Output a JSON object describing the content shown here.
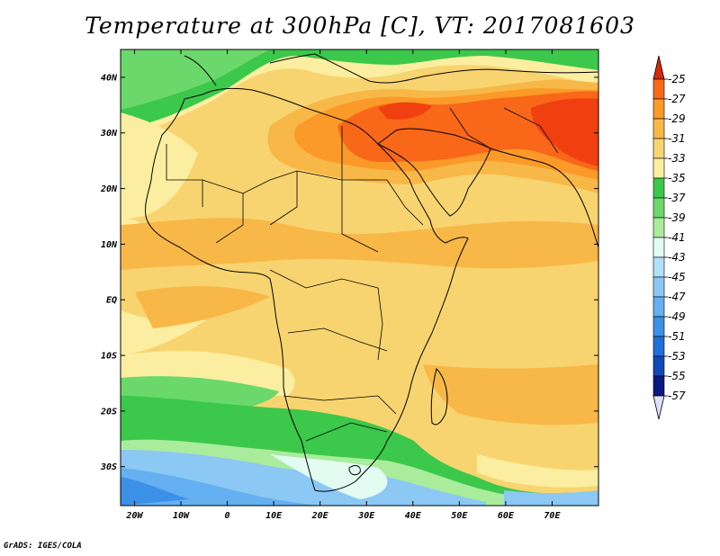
{
  "title": "Temperature at 300hPa [C], VT: 2017081603",
  "credit": "GrADS: IGES/COLA",
  "map": {
    "lon_range": [
      -23,
      80
    ],
    "lat_range": [
      -37,
      45
    ],
    "lat_ticks": [
      {
        "value": 40,
        "label": "40N"
      },
      {
        "value": 30,
        "label": "30N"
      },
      {
        "value": 20,
        "label": "20N"
      },
      {
        "value": 10,
        "label": "10N"
      },
      {
        "value": 0,
        "label": "EQ"
      },
      {
        "value": -10,
        "label": "10S"
      },
      {
        "value": -20,
        "label": "20S"
      },
      {
        "value": -30,
        "label": "30S"
      }
    ],
    "lon_ticks": [
      {
        "value": -20,
        "label": "20W"
      },
      {
        "value": -10,
        "label": "10W"
      },
      {
        "value": 0,
        "label": "0"
      },
      {
        "value": 10,
        "label": "10E"
      },
      {
        "value": 20,
        "label": "20E"
      },
      {
        "value": 30,
        "label": "30E"
      },
      {
        "value": 40,
        "label": "40E"
      },
      {
        "value": 50,
        "label": "50E"
      },
      {
        "value": 60,
        "label": "60E"
      },
      {
        "value": 70,
        "label": "70E"
      }
    ]
  },
  "colorbar": {
    "levels": [
      {
        "label": "-25",
        "color": "#f04010"
      },
      {
        "label": "-27",
        "color": "#f86818"
      },
      {
        "label": "-29",
        "color": "#fb9a28"
      },
      {
        "label": "-31",
        "color": "#f8b848"
      },
      {
        "label": "-33",
        "color": "#f8d470"
      },
      {
        "label": "-35",
        "color": "#fbeea0"
      },
      {
        "label": "-37",
        "color": "#3cc84a"
      },
      {
        "label": "-39",
        "color": "#6ad86a"
      },
      {
        "label": "-41",
        "color": "#a8ec9c"
      },
      {
        "label": "-43",
        "color": "#e2fcf2"
      },
      {
        "label": "-45",
        "color": "#b0e0fa"
      },
      {
        "label": "-47",
        "color": "#8cc8f4"
      },
      {
        "label": "-49",
        "color": "#64b0f0"
      },
      {
        "label": "-51",
        "color": "#3c90e8"
      },
      {
        "label": "-53",
        "color": "#2070d8"
      },
      {
        "label": "-55",
        "color": "#1048b8"
      },
      {
        "label": "-57",
        "color": "#0a1a80"
      }
    ],
    "top_cap_color": "#d82808",
    "bottom_cap_color": "#e0e0fa"
  }
}
